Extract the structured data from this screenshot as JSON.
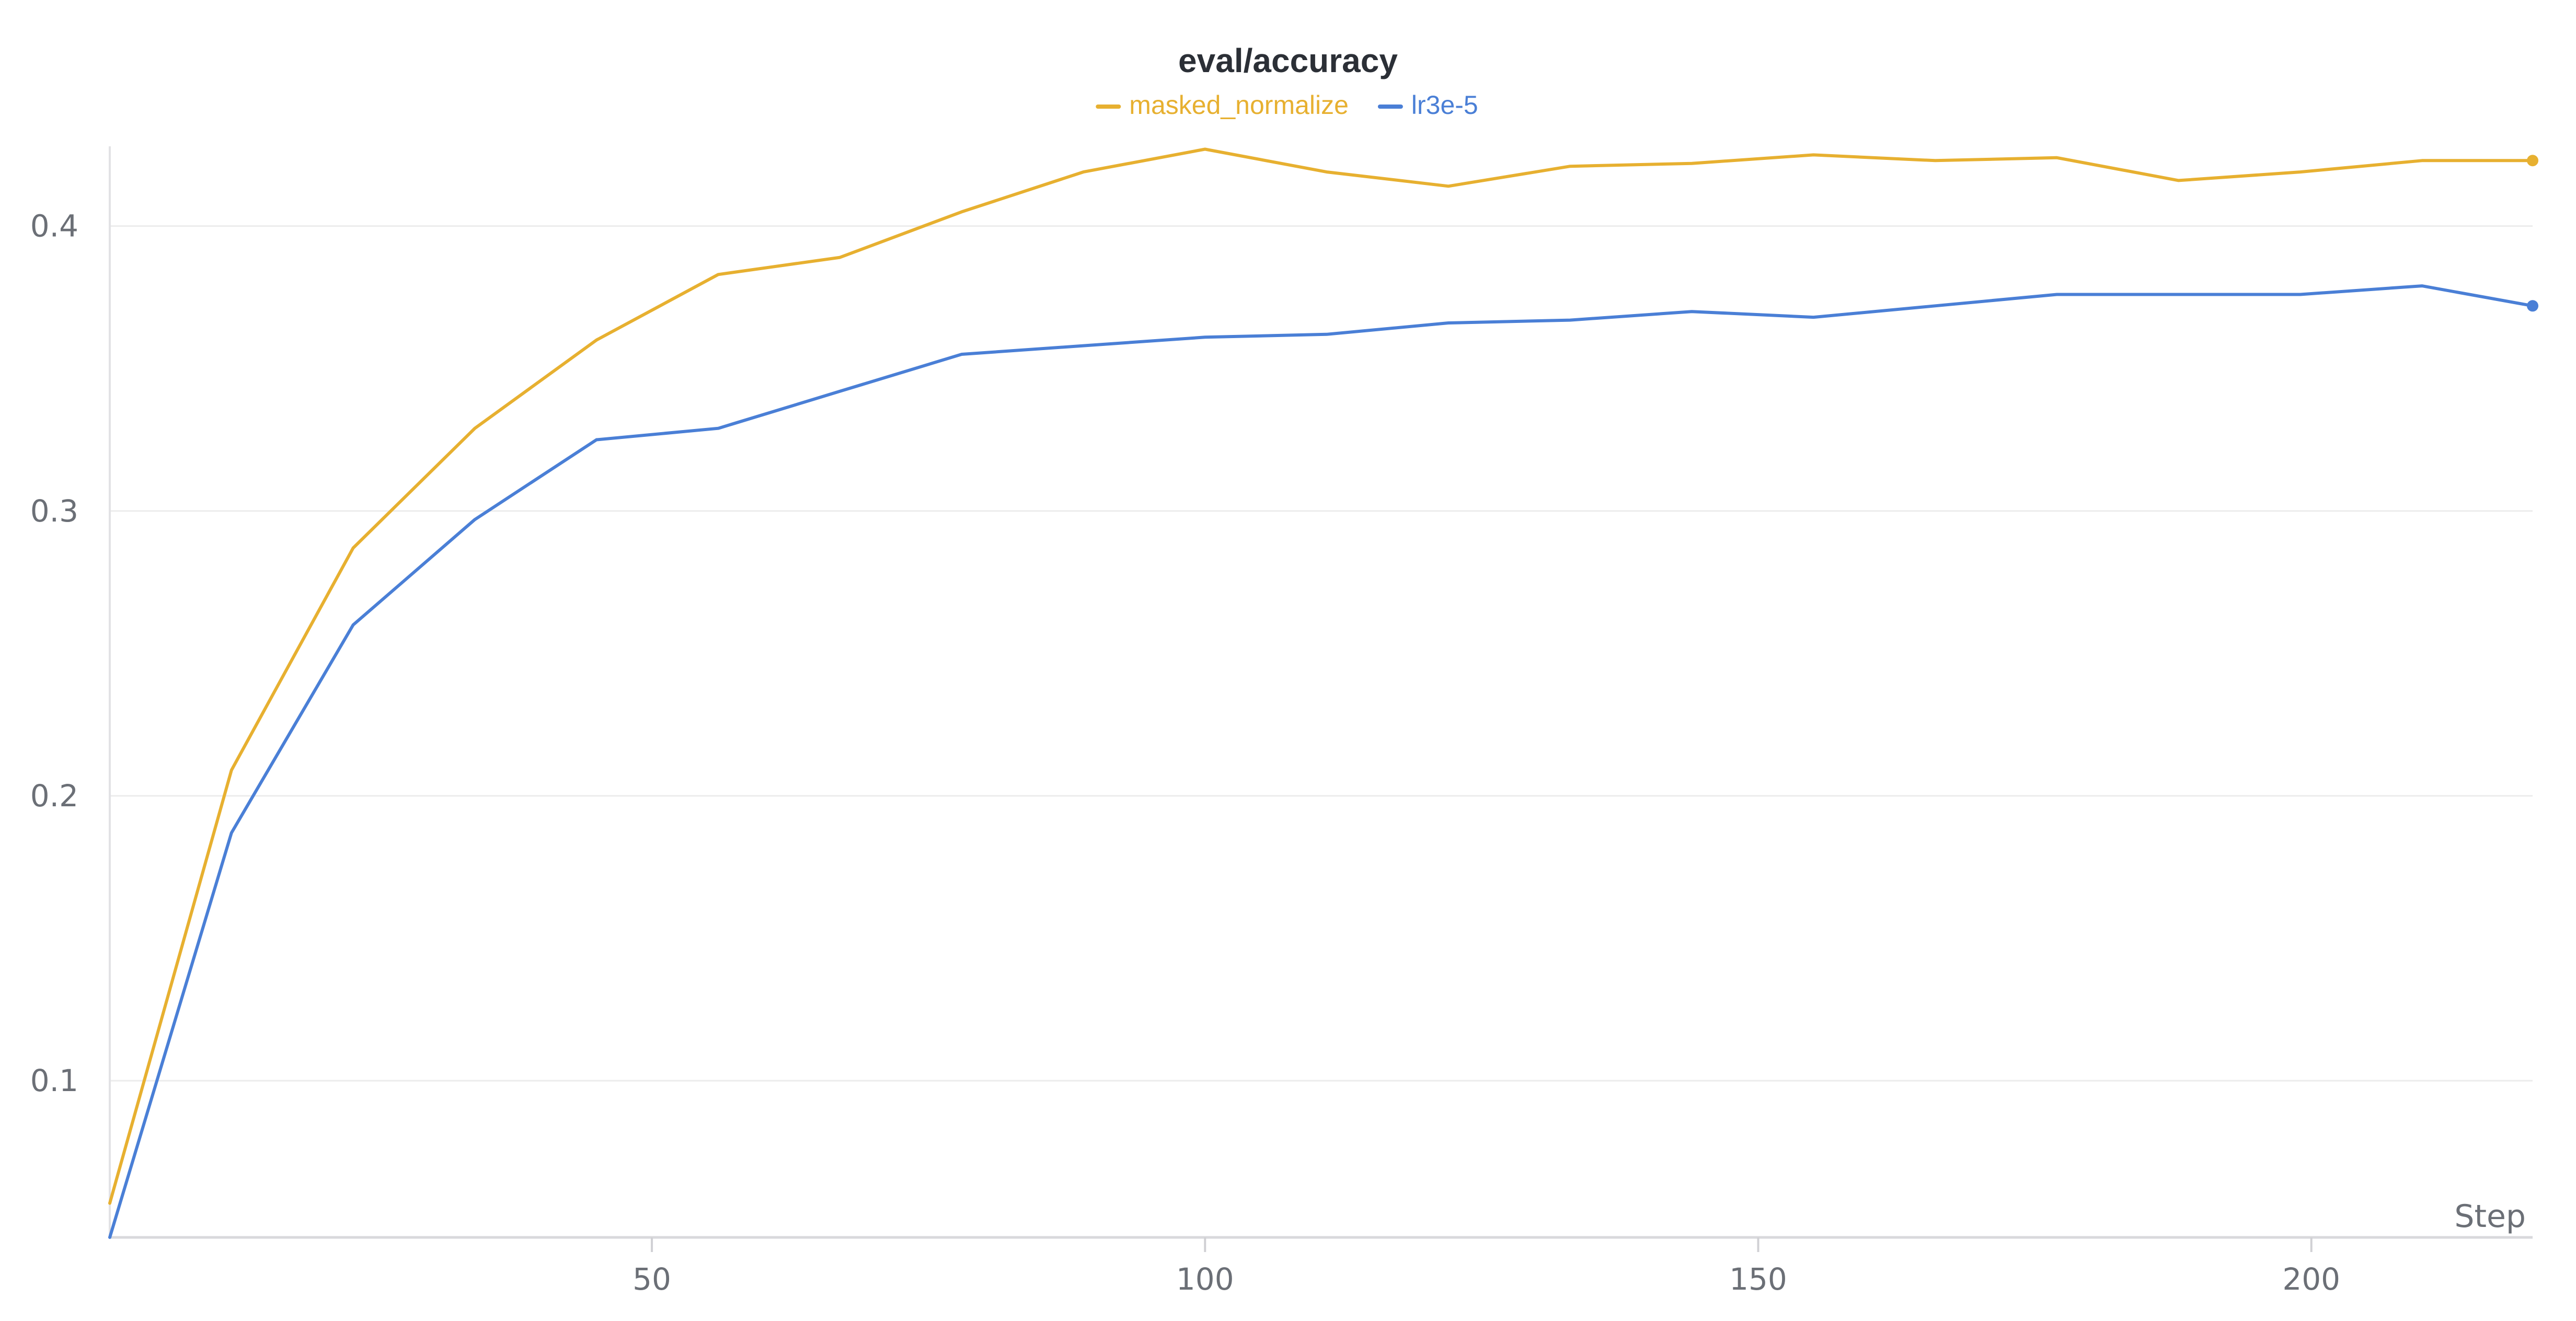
{
  "chart_data": {
    "type": "line",
    "title": "eval/accuracy",
    "xlabel": "Step",
    "ylabel": "",
    "xlim": [
      1,
      220
    ],
    "ylim": [
      0.045,
      0.428
    ],
    "x_ticks": [
      50,
      100,
      150,
      200
    ],
    "x_tick_labels": [
      "50",
      "100",
      "150",
      "200"
    ],
    "y_ticks": [
      0.1,
      0.2,
      0.3,
      0.4
    ],
    "y_tick_labels": [
      "0.1",
      "0.2",
      "0.3",
      "0.4"
    ],
    "grid": true,
    "legend_position": "top-center",
    "x": [
      1,
      12,
      23,
      34,
      45,
      56,
      67,
      78,
      89,
      100,
      111,
      122,
      133,
      144,
      155,
      166,
      177,
      188,
      199,
      210,
      220
    ],
    "series": [
      {
        "name": "masked_normalize",
        "color": "#e7b030",
        "values": [
          0.057,
          0.209,
          0.287,
          0.329,
          0.36,
          0.383,
          0.389,
          0.405,
          0.419,
          0.427,
          0.419,
          0.414,
          0.421,
          0.422,
          0.425,
          0.423,
          0.424,
          0.416,
          0.419,
          0.423,
          0.423
        ]
      },
      {
        "name": "lr3e-5",
        "color": "#4a7fd6",
        "values": [
          0.045,
          0.187,
          0.26,
          0.297,
          0.325,
          0.329,
          0.342,
          0.355,
          0.358,
          0.361,
          0.362,
          0.366,
          0.367,
          0.37,
          0.368,
          0.372,
          0.376,
          0.376,
          0.376,
          0.379,
          0.372
        ]
      }
    ]
  }
}
